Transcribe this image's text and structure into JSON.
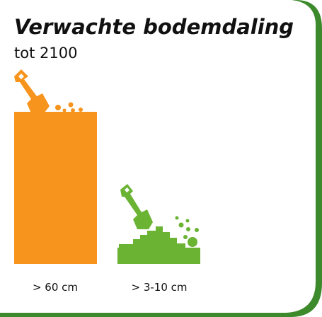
{
  "title": "Verwachte bodemdaling",
  "subtitle": "tot 2100",
  "items": [
    {
      "label": "> 60 cm"
    },
    {
      "label": "> 3-10 cm"
    }
  ]
}
